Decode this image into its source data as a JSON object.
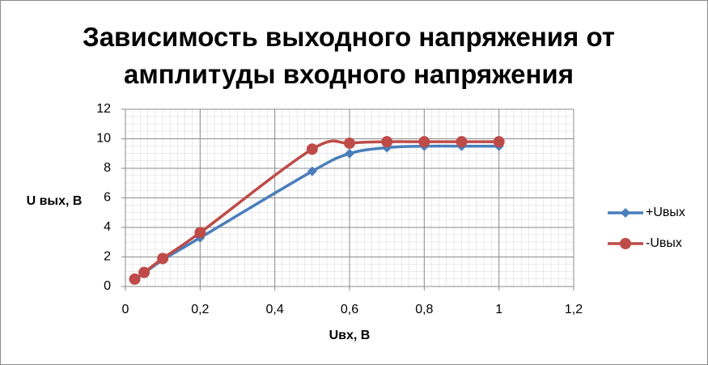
{
  "chart_data": {
    "type": "scatter-smooth",
    "title": "Зависимость выходного напряжения от амплитуды входного напряжения",
    "x_label": "Uвх, В",
    "y_label": "U вых, В",
    "xlim": [
      0,
      1.2
    ],
    "xticks": [
      0,
      {
        "value": 0.2,
        "label": "0,2"
      },
      {
        "value": 0.4,
        "label": "0,4"
      },
      {
        "value": 0.6,
        "label": "0,6"
      },
      {
        "value": 0.8,
        "label": "0,8"
      },
      1,
      {
        "value": 1.2,
        "label": "1,2"
      }
    ],
    "ylim": [
      0,
      12
    ],
    "yticks": [
      0,
      2,
      4,
      6,
      8,
      10,
      12
    ],
    "grid": true,
    "legend": "right",
    "series": [
      {
        "name": "+Uвых",
        "color": "#4a7ebb",
        "marker": "diamond",
        "x": [
          0.025,
          0.05,
          0.1,
          0.2,
          0.5,
          0.6,
          0.7,
          0.8,
          0.9,
          1.0
        ],
        "values": [
          0.45,
          0.9,
          1.8,
          3.3,
          7.8,
          9.0,
          9.4,
          9.5,
          9.5,
          9.5
        ]
      },
      {
        "name": "-Uвых",
        "color": "#be4b48",
        "marker": "circle",
        "x": [
          0.025,
          0.05,
          0.1,
          0.2,
          0.5,
          0.6,
          0.7,
          0.8,
          0.9,
          1.0
        ],
        "values": [
          0.5,
          0.95,
          1.9,
          3.65,
          9.3,
          9.7,
          9.8,
          9.8,
          9.8,
          9.8
        ]
      }
    ]
  }
}
